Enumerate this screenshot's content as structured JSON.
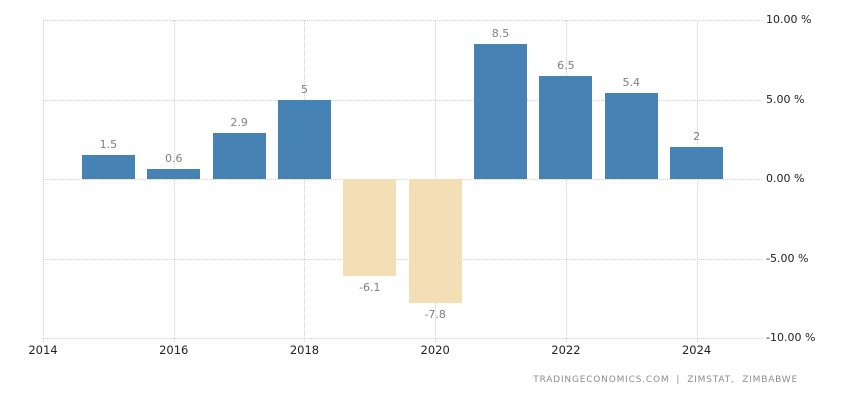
{
  "chart_data": {
    "type": "bar",
    "title": "",
    "categories": [
      2015,
      2016,
      2017,
      2018,
      2019,
      2020,
      2021,
      2022,
      2023,
      2024
    ],
    "values": [
      1.5,
      0.6,
      2.9,
      5,
      -6.1,
      -7.8,
      8.5,
      6.5,
      5.4,
      2
    ],
    "bar_labels": [
      "1.5",
      "0.6",
      "2.9",
      "5",
      "-6.1",
      "-7.8",
      "8.5",
      "6.5",
      "5.4",
      "2"
    ],
    "x_axis": {
      "tick_labels": [
        "2014",
        "2016",
        "2018",
        "2020",
        "2022",
        "2024"
      ],
      "tick_years": [
        2014,
        2016,
        2018,
        2020,
        2022,
        2024
      ],
      "range": [
        2014,
        2025
      ]
    },
    "y_axis": {
      "side": "right",
      "unit": "%",
      "range": [
        -10,
        10
      ],
      "ticks": [
        {
          "value": 10,
          "label": "10.00 %"
        },
        {
          "value": 5,
          "label": "5.00 %"
        },
        {
          "value": 0,
          "label": "0.00 %"
        },
        {
          "value": -5,
          "label": "-5.00 %"
        },
        {
          "value": -10,
          "label": "-10.00 %"
        }
      ]
    },
    "grid": {
      "style": "dotted",
      "color": "#d2d2d2",
      "visible": true
    },
    "legend": {
      "visible": false
    },
    "colors": {
      "positive_bar": "#4682b4",
      "negative_bar": "#f3deb5",
      "value_label": "#7f7f7f",
      "axis_label": "#222222",
      "background": "#ffffff"
    }
  },
  "footer": {
    "source": "TRADINGECONOMICS.COM",
    "separator": "|",
    "provider": "ZIMSTAT, ZIMBABWE"
  }
}
